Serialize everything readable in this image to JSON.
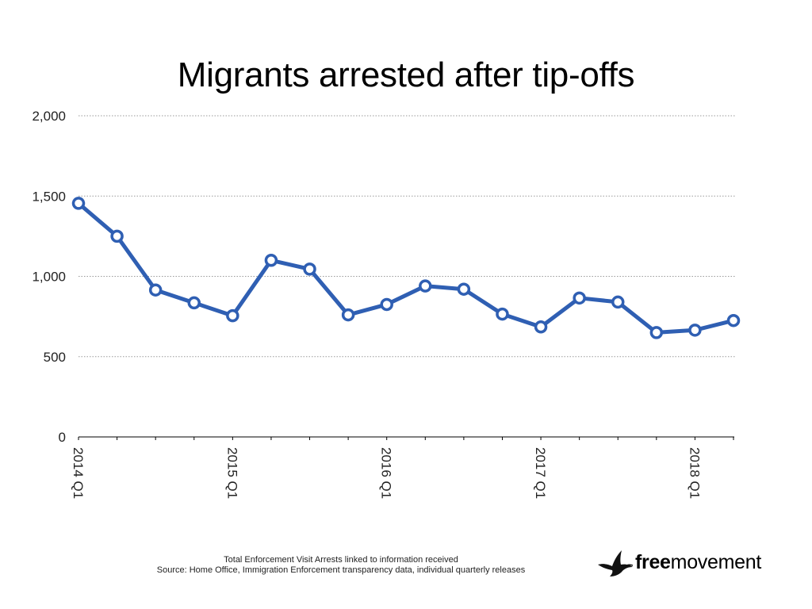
{
  "chart_data": {
    "type": "line",
    "title": "Migrants arrested after tip-offs",
    "xlabel": "",
    "ylabel": "",
    "ylim": [
      0,
      2000
    ],
    "yticks": [
      0,
      500,
      1000,
      1500,
      2000
    ],
    "ytick_labels": [
      "0",
      "500",
      "1,000",
      "1,500",
      "2,000"
    ],
    "x": [
      "2014 Q1",
      "2014 Q2",
      "2014 Q3",
      "2014 Q4",
      "2015 Q1",
      "2015 Q2",
      "2015 Q3",
      "2015 Q4",
      "2016 Q1",
      "2016 Q2",
      "2016 Q3",
      "2016 Q4",
      "2017 Q1",
      "2017 Q2",
      "2017 Q3",
      "2017 Q4",
      "2018 Q1",
      "2018 Q2"
    ],
    "x_tick_labels": [
      "2014 Q1",
      "2015 Q1",
      "2016 Q1",
      "2017 Q1",
      "2018 Q1"
    ],
    "series": [
      {
        "color": "#2f5fb3",
        "values": [
          1455,
          1250,
          915,
          835,
          755,
          1100,
          1045,
          760,
          825,
          940,
          920,
          765,
          685,
          865,
          840,
          650,
          665,
          725
        ]
      }
    ],
    "grid": true,
    "legend": "none"
  },
  "footnote": {
    "line1": "Total Enforcement Visit Arrests linked to information received",
    "line2": "Source: Home Office, Immigration Enforcement transparency data, individual quarterly releases"
  },
  "brand": {
    "bold": "free",
    "regular": "movement",
    "icon": "bird-icon"
  }
}
